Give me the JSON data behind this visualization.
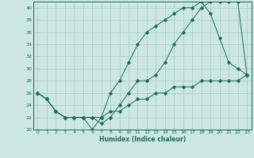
{
  "xlabel": "Humidex (Indice chaleur)",
  "bg_color": "#cce8e0",
  "line_color": "#1a6b5a",
  "grid_color": "#a8ccc4",
  "xlim": [
    -0.5,
    23.5
  ],
  "ylim": [
    20,
    41
  ],
  "xticks": [
    0,
    1,
    2,
    3,
    4,
    5,
    6,
    7,
    8,
    9,
    10,
    11,
    12,
    13,
    14,
    15,
    16,
    17,
    18,
    19,
    20,
    21,
    22,
    23
  ],
  "yticks": [
    20,
    22,
    24,
    26,
    28,
    30,
    32,
    34,
    36,
    38,
    40
  ],
  "line1_x": [
    0,
    1,
    2,
    3,
    4,
    5,
    6,
    7,
    8,
    9,
    10,
    11,
    12,
    13,
    14,
    15,
    16,
    17,
    18,
    19,
    20,
    21,
    22,
    23
  ],
  "line1_y": [
    26,
    25,
    23,
    22,
    22,
    22,
    22,
    21,
    22,
    24,
    26,
    28,
    28,
    29,
    31,
    34,
    36,
    38,
    40,
    41,
    41,
    41,
    41,
    29
  ],
  "line2_x": [
    0,
    1,
    2,
    3,
    4,
    5,
    6,
    7,
    8,
    9,
    10,
    11,
    12,
    13,
    14,
    15,
    16,
    17,
    18,
    19,
    20,
    21,
    22,
    23
  ],
  "line2_y": [
    26,
    25,
    23,
    22,
    22,
    22,
    20,
    22,
    26,
    28,
    31,
    34,
    36,
    37,
    38,
    39,
    40,
    40,
    41,
    39,
    35,
    31,
    30,
    29
  ],
  "line3_x": [
    0,
    1,
    2,
    3,
    4,
    5,
    6,
    7,
    8,
    9,
    10,
    11,
    12,
    13,
    14,
    15,
    16,
    17,
    18,
    19,
    20,
    21,
    22,
    23
  ],
  "line3_y": [
    26,
    25,
    23,
    22,
    22,
    22,
    22,
    22,
    23,
    23,
    24,
    25,
    25,
    26,
    26,
    27,
    27,
    27,
    28,
    28,
    28,
    28,
    28,
    29
  ]
}
